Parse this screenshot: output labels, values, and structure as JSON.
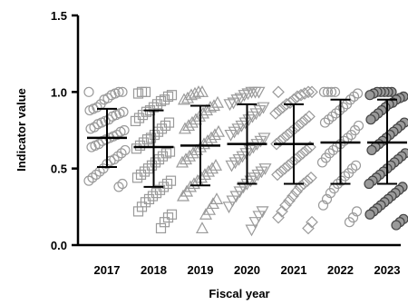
{
  "chart_data": {
    "type": "scatter",
    "subtype": "dot-plot with mean and SD bars",
    "xlabel": "Fiscal year",
    "ylabel": "Indicator value",
    "ylim": [
      0.0,
      1.5
    ],
    "yticks": [
      "0.0",
      "0.5",
      "1.0",
      "1.5"
    ],
    "grid": false,
    "legend": "none",
    "categories": [
      "2017",
      "2018",
      "2019",
      "2020",
      "2021",
      "2022",
      "2023"
    ],
    "summary": [
      {
        "category": "2017",
        "mean": 0.7,
        "sd_low": 0.51,
        "sd_high": 0.89
      },
      {
        "category": "2018",
        "mean": 0.64,
        "sd_low": 0.38,
        "sd_high": 0.88
      },
      {
        "category": "2019",
        "mean": 0.65,
        "sd_low": 0.39,
        "sd_high": 0.91
      },
      {
        "category": "2020",
        "mean": 0.66,
        "sd_low": 0.4,
        "sd_high": 0.92
      },
      {
        "category": "2021",
        "mean": 0.66,
        "sd_low": 0.4,
        "sd_high": 0.92
      },
      {
        "category": "2022",
        "mean": 0.67,
        "sd_low": 0.4,
        "sd_high": 0.95
      },
      {
        "category": "2023",
        "mean": 0.67,
        "sd_low": 0.4,
        "sd_high": 0.95
      }
    ],
    "series": [
      {
        "category": "2017",
        "marker": "circle",
        "fill": "none",
        "color": "#9a9a9a",
        "values": [
          1.0,
          1.0,
          1.0,
          0.99,
          0.98,
          0.96,
          0.95,
          0.92,
          0.9,
          0.89,
          0.88,
          0.87,
          0.86,
          0.85,
          0.84,
          0.82,
          0.81,
          0.8,
          0.79,
          0.77,
          0.76,
          0.75,
          0.74,
          0.72,
          0.71,
          0.7,
          0.69,
          0.68,
          0.66,
          0.65,
          0.64,
          0.62,
          0.6,
          0.58,
          0.56,
          0.55,
          0.53,
          0.5,
          0.48,
          0.46,
          0.44,
          0.42,
          0.4,
          0.38
        ]
      },
      {
        "category": "2018",
        "marker": "square",
        "fill": "none",
        "color": "#9a9a9a",
        "values": [
          1.0,
          1.0,
          0.99,
          0.98,
          0.97,
          0.95,
          0.94,
          0.92,
          0.9,
          0.88,
          0.87,
          0.85,
          0.83,
          0.81,
          0.8,
          0.78,
          0.76,
          0.74,
          0.72,
          0.7,
          0.69,
          0.67,
          0.65,
          0.63,
          0.61,
          0.6,
          0.58,
          0.56,
          0.54,
          0.52,
          0.5,
          0.48,
          0.46,
          0.44,
          0.42,
          0.4,
          0.38,
          0.36,
          0.34,
          0.32,
          0.3,
          0.28,
          0.25,
          0.22,
          0.2,
          0.18,
          0.15,
          0.11
        ]
      },
      {
        "category": "2019",
        "marker": "triangle-up",
        "fill": "none",
        "color": "#9a9a9a",
        "values": [
          1.0,
          1.0,
          0.99,
          0.98,
          0.96,
          0.95,
          0.93,
          0.91,
          0.9,
          0.88,
          0.86,
          0.84,
          0.82,
          0.8,
          0.78,
          0.76,
          0.74,
          0.72,
          0.7,
          0.68,
          0.66,
          0.64,
          0.62,
          0.6,
          0.58,
          0.56,
          0.54,
          0.52,
          0.5,
          0.48,
          0.46,
          0.44,
          0.42,
          0.4,
          0.38,
          0.35,
          0.32,
          0.3,
          0.27,
          0.23,
          0.2,
          0.11
        ]
      },
      {
        "category": "2020",
        "marker": "triangle-down",
        "fill": "none",
        "color": "#9a9a9a",
        "values": [
          1.0,
          1.0,
          1.0,
          0.99,
          0.98,
          0.96,
          0.95,
          0.93,
          0.92,
          0.9,
          0.88,
          0.86,
          0.84,
          0.82,
          0.8,
          0.78,
          0.76,
          0.74,
          0.72,
          0.7,
          0.68,
          0.66,
          0.64,
          0.62,
          0.6,
          0.58,
          0.56,
          0.54,
          0.52,
          0.5,
          0.48,
          0.46,
          0.44,
          0.42,
          0.4,
          0.38,
          0.35,
          0.32,
          0.29,
          0.25,
          0.22,
          0.19,
          0.15,
          0.1
        ]
      },
      {
        "category": "2021",
        "marker": "diamond",
        "fill": "none",
        "color": "#9a9a9a",
        "values": [
          1.0,
          1.0,
          1.0,
          0.99,
          0.98,
          0.97,
          0.95,
          0.93,
          0.92,
          0.9,
          0.88,
          0.86,
          0.84,
          0.82,
          0.8,
          0.78,
          0.76,
          0.74,
          0.72,
          0.7,
          0.68,
          0.66,
          0.64,
          0.62,
          0.6,
          0.58,
          0.56,
          0.54,
          0.52,
          0.5,
          0.48,
          0.46,
          0.44,
          0.42,
          0.4,
          0.38,
          0.35,
          0.32,
          0.29,
          0.26,
          0.22,
          0.18,
          0.15,
          0.11
        ]
      },
      {
        "category": "2022",
        "marker": "circle",
        "fill": "none",
        "color": "#9a9a9a",
        "values": [
          1.0,
          1.0,
          1.0,
          1.0,
          0.99,
          0.97,
          0.95,
          0.92,
          0.9,
          0.88,
          0.86,
          0.84,
          0.82,
          0.8,
          0.78,
          0.75,
          0.72,
          0.7,
          0.68,
          0.66,
          0.64,
          0.62,
          0.6,
          0.57,
          0.54,
          0.52,
          0.5,
          0.47,
          0.45,
          0.42,
          0.4,
          0.37,
          0.34,
          0.3,
          0.26,
          0.22,
          0.18,
          0.15
        ]
      },
      {
        "category": "2023",
        "marker": "circle",
        "fill": "#9a9a9a",
        "color": "#444444",
        "values": [
          1.0,
          1.0,
          1.0,
          1.0,
          1.0,
          0.99,
          0.98,
          0.97,
          0.96,
          0.95,
          0.93,
          0.92,
          0.9,
          0.88,
          0.86,
          0.84,
          0.82,
          0.8,
          0.78,
          0.76,
          0.74,
          0.72,
          0.7,
          0.68,
          0.66,
          0.64,
          0.62,
          0.6,
          0.58,
          0.56,
          0.54,
          0.52,
          0.5,
          0.48,
          0.46,
          0.44,
          0.42,
          0.4,
          0.38,
          0.36,
          0.34,
          0.32,
          0.3,
          0.28,
          0.26,
          0.24,
          0.22,
          0.2,
          0.17,
          0.15,
          0.13
        ]
      }
    ]
  }
}
